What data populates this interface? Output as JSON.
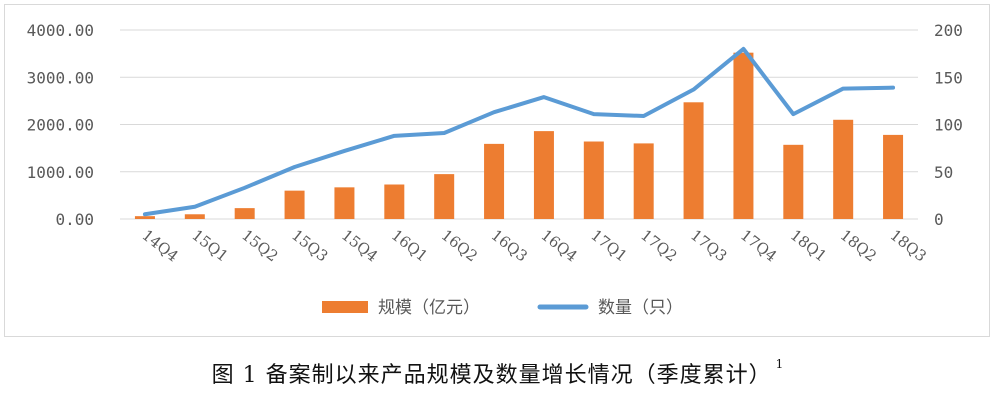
{
  "chart_data": {
    "type": "bar+line",
    "categories": [
      "14Q4",
      "15Q1",
      "15Q2",
      "15Q3",
      "15Q4",
      "16Q1",
      "16Q2",
      "16Q3",
      "16Q4",
      "17Q1",
      "17Q2",
      "17Q3",
      "17Q4",
      "18Q1",
      "18Q2",
      "18Q3"
    ],
    "series": [
      {
        "name": "规模（亿元）",
        "type": "bar",
        "axis": "left",
        "color": "#ed7d31",
        "values": [
          60,
          100,
          230,
          600,
          670,
          730,
          950,
          1590,
          1860,
          1640,
          1600,
          2470,
          3520,
          1570,
          2100,
          1780
        ]
      },
      {
        "name": "数量（只）",
        "type": "line",
        "axis": "right",
        "color": "#5b9bd5",
        "values": [
          5,
          13,
          33,
          55,
          72,
          88,
          91,
          113,
          129,
          111,
          109,
          137,
          180,
          111,
          138,
          139
        ]
      }
    ],
    "y_left": {
      "ylim": [
        0,
        4000
      ],
      "ticks": [
        "0.00",
        "1000.00",
        "2000.00",
        "3000.00",
        "4000.00"
      ]
    },
    "y_right": {
      "ylim": [
        0,
        200
      ],
      "ticks": [
        "0",
        "50",
        "100",
        "150",
        "200"
      ]
    },
    "grid": true,
    "legend_position": "bottom"
  },
  "caption": {
    "text": "图 1 备案制以来产品规模及数量增长情况（季度累计）",
    "footnote": "1"
  }
}
